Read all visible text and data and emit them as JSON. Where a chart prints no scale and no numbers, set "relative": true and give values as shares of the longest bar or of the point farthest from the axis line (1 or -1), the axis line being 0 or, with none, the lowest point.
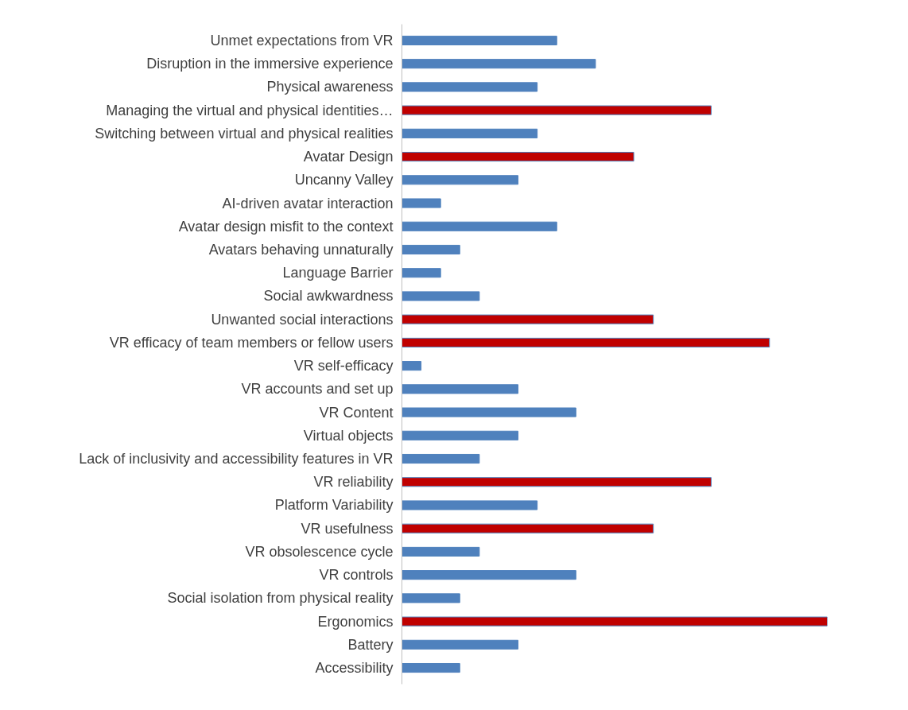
{
  "chart_data": {
    "type": "bar",
    "orientation": "horizontal",
    "relative": true,
    "categories": [
      "Unmet expectations from VR",
      "Disruption in the immersive experience",
      "Physical awareness",
      "Managing the virtual and physical identities…",
      "Switching between virtual and physical realities",
      "Avatar Design",
      "Uncanny Valley",
      "AI-driven avatar interaction",
      "Avatar design misfit to the context",
      "Avatars behaving unnaturally",
      "Language Barrier",
      "Social awkwardness",
      "Unwanted social interactions",
      "VR efficacy of team members or fellow users",
      "VR self-efficacy",
      "VR accounts and set up",
      "VR Content",
      "Virtual objects",
      "Lack of inclusivity and accessibility features in VR",
      "VR reliability",
      "Platform Variability",
      "VR usefulness",
      "VR obsolescence cycle",
      "VR controls",
      "Social isolation from physical reality",
      "Ergonomics",
      "Battery",
      "Accessibility"
    ],
    "values": [
      0.364,
      0.455,
      0.318,
      0.727,
      0.318,
      0.545,
      0.273,
      0.091,
      0.364,
      0.136,
      0.091,
      0.182,
      0.591,
      0.864,
      0.045,
      0.273,
      0.409,
      0.273,
      0.182,
      0.727,
      0.318,
      0.591,
      0.182,
      0.409,
      0.136,
      1,
      0.273,
      0.136
    ],
    "colors": [
      "#4f81bd",
      "#4f81bd",
      "#4f81bd",
      "#c00000",
      "#4f81bd",
      "#c00000",
      "#4f81bd",
      "#4f81bd",
      "#4f81bd",
      "#4f81bd",
      "#4f81bd",
      "#4f81bd",
      "#c00000",
      "#c00000",
      "#4f81bd",
      "#4f81bd",
      "#4f81bd",
      "#4f81bd",
      "#4f81bd",
      "#c00000",
      "#4f81bd",
      "#c00000",
      "#4f81bd",
      "#4f81bd",
      "#4f81bd",
      "#c00000",
      "#4f81bd",
      "#4f81bd"
    ]
  }
}
